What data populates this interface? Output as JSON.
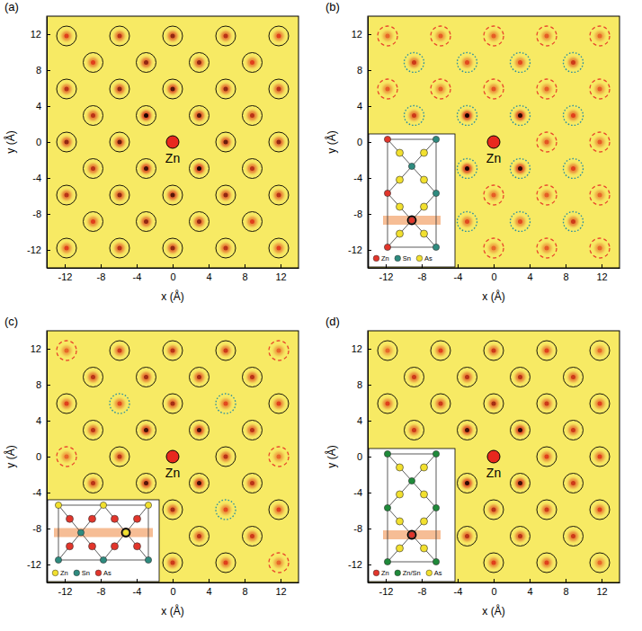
{
  "chart_data": [
    {
      "type": "scatter",
      "title": "(a)",
      "xlabel": "x (Å)",
      "ylabel": "y (Å)",
      "xlim": [
        -14,
        14
      ],
      "ylim": [
        -14,
        14
      ],
      "xticks": [
        -12,
        -8,
        -4,
        0,
        4,
        8,
        12
      ],
      "yticks": [
        -12,
        -8,
        -4,
        0,
        4,
        8,
        12
      ],
      "intensity_range": [
        0,
        1
      ],
      "annotations": [
        {
          "text": "Zn",
          "x": 0,
          "y": 0
        }
      ],
      "series": [
        {
          "marker": "circle",
          "line_style": "solid",
          "color": "#000000",
          "x": [
            -11.8,
            -5.9,
            0,
            5.9,
            11.8,
            -8.85,
            -2.95,
            2.95,
            8.85,
            -11.8,
            -5.9,
            0,
            5.9,
            11.8,
            -8.85,
            -2.95,
            2.95,
            8.85,
            -11.8,
            -5.9,
            5.9,
            11.8,
            -8.85,
            -2.95,
            2.95,
            8.85,
            -11.8,
            -5.9,
            0,
            5.9,
            11.8,
            -8.85,
            -2.95,
            2.95,
            8.85,
            -11.8,
            -5.9,
            0,
            5.9,
            11.8
          ],
          "y": [
            11.8,
            11.8,
            11.8,
            11.8,
            11.8,
            8.85,
            8.85,
            8.85,
            8.85,
            5.9,
            5.9,
            5.9,
            5.9,
            5.9,
            2.95,
            2.95,
            2.95,
            2.95,
            0,
            0,
            0,
            0,
            -2.95,
            -2.95,
            -2.95,
            -2.95,
            -5.9,
            -5.9,
            -5.9,
            -5.9,
            -5.9,
            -8.85,
            -8.85,
            -8.85,
            -8.85,
            -11.8,
            -11.8,
            -11.8,
            -11.8,
            -11.8
          ],
          "values": [
            0.5,
            0.6,
            0.7,
            0.6,
            0.5,
            0.5,
            0.7,
            0.7,
            0.5,
            0.6,
            0.7,
            0.85,
            0.7,
            0.6,
            0.6,
            1.0,
            0.85,
            0.6,
            0.7,
            0.8,
            0.8,
            0.7,
            0.6,
            0.9,
            1.0,
            0.6,
            0.6,
            0.7,
            0.85,
            0.7,
            0.6,
            0.5,
            0.7,
            0.7,
            0.5,
            0.5,
            0.6,
            0.7,
            0.6,
            0.5
          ]
        }
      ]
    },
    {
      "type": "scatter",
      "title": "(b)",
      "xlabel": "x (Å)",
      "ylabel": "y (Å)",
      "xlim": [
        -14,
        14
      ],
      "ylim": [
        -14,
        14
      ],
      "xticks": [
        -12,
        -8,
        -4,
        0,
        4,
        8,
        12
      ],
      "yticks": [
        -12,
        -8,
        -4,
        0,
        4,
        8,
        12
      ],
      "intensity_range": [
        0,
        1
      ],
      "annotations": [
        {
          "text": "Zn",
          "x": 0,
          "y": 0
        }
      ],
      "inset": {
        "labels": [
          "Zn",
          "Sn",
          "As"
        ],
        "colors": [
          "#e2352b",
          "#2e8b7f",
          "#f2e02e"
        ]
      },
      "series": [
        {
          "marker": "circle",
          "line_style": "dashed",
          "color": "#e8452c",
          "x": [
            -11.8,
            -5.9,
            0,
            5.9,
            11.8,
            -11.8,
            -5.9,
            0,
            5.9,
            11.8,
            5.9,
            11.8,
            0,
            5.9,
            11.8,
            0,
            5.9,
            11.8
          ],
          "y": [
            11.8,
            11.8,
            11.8,
            11.8,
            11.8,
            5.9,
            5.9,
            5.9,
            5.9,
            5.9,
            0,
            0,
            -5.9,
            -5.9,
            -5.9,
            -11.8,
            -11.8,
            -11.8
          ],
          "values": [
            0.3,
            0.35,
            0.35,
            0.35,
            0.3,
            0.35,
            0.35,
            0.4,
            0.35,
            0.35,
            0.4,
            0.35,
            0.35,
            0.35,
            0.3,
            0.3,
            0.35,
            0.3
          ]
        },
        {
          "marker": "circle",
          "line_style": "dotted",
          "color": "#2b8fa0",
          "x": [
            -8.85,
            -2.95,
            2.95,
            8.85,
            -8.85,
            -2.95,
            2.95,
            8.85,
            -2.95,
            2.95,
            8.85,
            -2.95,
            2.95,
            8.85
          ],
          "y": [
            8.85,
            8.85,
            8.85,
            8.85,
            2.95,
            2.95,
            2.95,
            2.95,
            -2.95,
            -2.95,
            -2.95,
            -8.85,
            -8.85,
            -8.85
          ],
          "values": [
            0.55,
            0.45,
            0.45,
            0.55,
            0.55,
            1.0,
            0.95,
            0.5,
            1.0,
            0.95,
            0.5,
            0.45,
            0.45,
            0.55
          ]
        }
      ]
    },
    {
      "type": "scatter",
      "title": "(c)",
      "xlabel": "x (Å)",
      "ylabel": "y (Å)",
      "xlim": [
        -14,
        14
      ],
      "ylim": [
        -14,
        14
      ],
      "xticks": [
        -12,
        -8,
        -4,
        0,
        4,
        8,
        12
      ],
      "yticks": [
        -12,
        -8,
        -4,
        0,
        4,
        8,
        12
      ],
      "intensity_range": [
        0,
        1
      ],
      "annotations": [
        {
          "text": "Zn",
          "x": 0,
          "y": 0
        }
      ],
      "inset": {
        "labels": [
          "Zn",
          "Sn",
          "As"
        ],
        "colors": [
          "#f2e02e",
          "#2e8b7f",
          "#e2352b"
        ]
      },
      "series": [
        {
          "marker": "circle",
          "line_style": "solid",
          "color": "#000000",
          "x": [
            -5.9,
            0,
            5.9,
            -8.85,
            -2.95,
            2.95,
            8.85,
            -11.8,
            0,
            11.8,
            -8.85,
            -2.95,
            2.95,
            8.85,
            -5.9,
            5.9,
            -8.85,
            -2.95,
            2.95,
            8.85,
            0,
            11.8,
            2.95,
            8.85,
            0,
            5.9
          ],
          "y": [
            11.8,
            11.8,
            11.8,
            8.85,
            8.85,
            8.85,
            8.85,
            5.9,
            5.9,
            5.9,
            2.95,
            2.95,
            2.95,
            2.95,
            0,
            0,
            -2.95,
            -2.95,
            -2.95,
            -2.95,
            -5.9,
            -5.9,
            -8.85,
            -8.85,
            -11.8,
            -11.8
          ],
          "values": [
            0.55,
            0.6,
            0.55,
            0.6,
            0.65,
            0.65,
            0.6,
            0.5,
            0.65,
            0.5,
            0.6,
            0.9,
            0.9,
            0.6,
            0.6,
            0.6,
            0.6,
            0.85,
            0.9,
            0.6,
            0.65,
            0.5,
            0.6,
            0.55,
            0.55,
            0.5
          ]
        },
        {
          "marker": "circle",
          "line_style": "dashed",
          "color": "#e8452c",
          "x": [
            -11.8,
            11.8,
            -11.8,
            11.8,
            11.8
          ],
          "y": [
            11.8,
            11.8,
            0,
            0,
            -11.8
          ],
          "values": [
            0.3,
            0.3,
            0.3,
            0.3,
            0.3
          ]
        },
        {
          "marker": "circle",
          "line_style": "dotted",
          "color": "#2b8fa0",
          "x": [
            -5.9,
            5.9,
            5.9
          ],
          "y": [
            5.9,
            5.9,
            -5.9
          ],
          "values": [
            0.45,
            0.45,
            0.45
          ]
        }
      ]
    },
    {
      "type": "scatter",
      "title": "(d)",
      "xlabel": "x (Å)",
      "ylabel": "y (Å)",
      "xlim": [
        -14,
        14
      ],
      "ylim": [
        -14,
        14
      ],
      "xticks": [
        -12,
        -8,
        -4,
        0,
        4,
        8,
        12
      ],
      "yticks": [
        -12,
        -8,
        -4,
        0,
        4,
        8,
        12
      ],
      "intensity_range": [
        0,
        1
      ],
      "annotations": [
        {
          "text": "Zn",
          "x": 0,
          "y": 0
        }
      ],
      "inset": {
        "labels": [
          "Zn",
          "Zn/Sn",
          "As"
        ],
        "colors": [
          "#e2352b",
          "#1f8a3a",
          "#f2e02e"
        ]
      },
      "series": [
        {
          "marker": "circle",
          "line_style": "solid",
          "color": "#000000",
          "x": [
            -11.8,
            -5.9,
            0,
            5.9,
            11.8,
            -8.85,
            -2.95,
            2.95,
            8.85,
            -11.8,
            -5.9,
            0,
            5.9,
            11.8,
            -8.85,
            -2.95,
            2.95,
            8.85,
            5.9,
            11.8,
            -2.95,
            2.95,
            8.85,
            0,
            5.9,
            11.8,
            -2.95,
            2.95,
            8.85,
            0,
            5.9,
            11.8
          ],
          "y": [
            11.8,
            11.8,
            11.8,
            11.8,
            11.8,
            8.85,
            8.85,
            8.85,
            8.85,
            5.9,
            5.9,
            5.9,
            5.9,
            5.9,
            2.95,
            2.95,
            2.95,
            2.95,
            0,
            0,
            -2.95,
            -2.95,
            -2.95,
            -5.9,
            -5.9,
            -5.9,
            -8.85,
            -8.85,
            -8.85,
            -11.8,
            -11.8,
            -11.8
          ],
          "values": [
            0.3,
            0.5,
            0.55,
            0.5,
            0.3,
            0.55,
            0.6,
            0.6,
            0.55,
            0.5,
            0.55,
            0.65,
            0.55,
            0.5,
            0.55,
            0.9,
            0.95,
            0.55,
            0.5,
            0.5,
            0.95,
            0.9,
            0.55,
            0.6,
            0.55,
            0.5,
            0.6,
            0.6,
            0.55,
            0.5,
            0.5,
            0.3
          ]
        }
      ]
    }
  ]
}
